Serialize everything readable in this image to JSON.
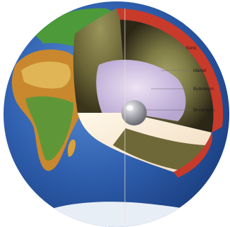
{
  "diagram": {
    "layers": [
      {
        "key": "crust",
        "label": "Korst"
      },
      {
        "key": "mantle",
        "label": "Mantel"
      },
      {
        "key": "outer_core",
        "label": "Buitenkern"
      },
      {
        "key": "inner_core",
        "label": "Binnenkern"
      }
    ]
  },
  "colors": {
    "background": "#ffffff",
    "ocean": "#2f5fae",
    "land_green": "#4c9a3a",
    "desert": "#d8a23a",
    "crust_rim": "#c83a2a",
    "mantle_dark": "#2c2616",
    "mantle_light": "#8f8a50",
    "outer_core": "#cdbde0",
    "inner_core": "#9a9aa2",
    "cut_face_light": "#f6e8cf"
  }
}
